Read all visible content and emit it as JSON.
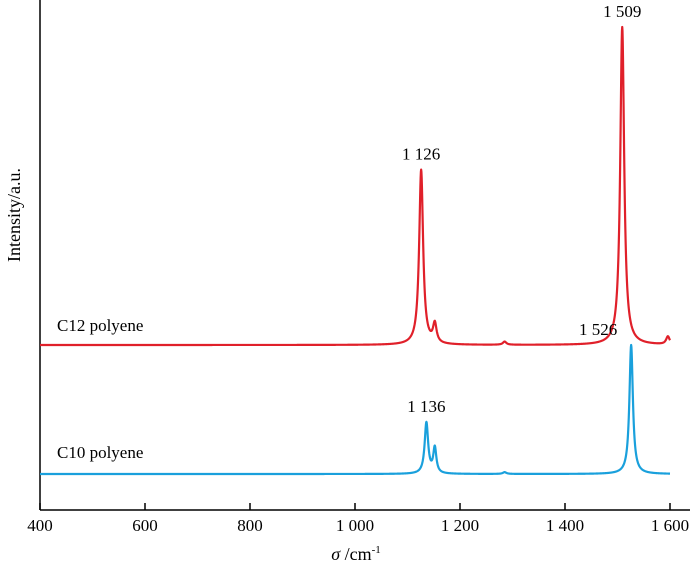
{
  "chart_data": {
    "type": "line",
    "xlabel": "σ /cm",
    "xlabel_symbol": "σ",
    "xlabel_unit": " /cm",
    "xlabel_superscript": "-1",
    "ylabel": "Intensity/a.u.",
    "xlim": [
      400,
      1600
    ],
    "grid": false,
    "x_ticks": [
      {
        "value": 400,
        "label": "400"
      },
      {
        "value": 600,
        "label": "600"
      },
      {
        "value": 800,
        "label": "800"
      },
      {
        "value": 1000,
        "label": "1 000"
      },
      {
        "value": 1200,
        "label": "1 200"
      },
      {
        "value": 1400,
        "label": "1 400"
      },
      {
        "value": 1600,
        "label": "1 600"
      }
    ],
    "series": [
      {
        "name": "C12 polyene",
        "color": "#e0202a",
        "baseline": 0.0,
        "peaks": [
          {
            "x": 1126,
            "height": 0.55,
            "width": 4.5
          },
          {
            "x": 1152,
            "height": 0.06,
            "width": 4
          },
          {
            "x": 1285,
            "height": 0.01,
            "width": 4
          },
          {
            "x": 1509,
            "height": 1.0,
            "width": 4.5
          },
          {
            "x": 1596,
            "height": 0.025,
            "width": 4
          }
        ],
        "labels": [
          {
            "x": 1126,
            "text": "1 126"
          },
          {
            "x": 1509,
            "text": "1 509"
          }
        ]
      },
      {
        "name": "C10 polyene",
        "color": "#1aa0dc",
        "baseline": 0.0,
        "peaks": [
          {
            "x": 1136,
            "height": 0.17,
            "width": 4
          },
          {
            "x": 1152,
            "height": 0.085,
            "width": 3.5
          },
          {
            "x": 1285,
            "height": 0.006,
            "width": 4
          },
          {
            "x": 1526,
            "height": 0.43,
            "width": 4
          }
        ],
        "labels": [
          {
            "x": 1136,
            "text": "1 136"
          },
          {
            "x": 1526,
            "text": "1 526"
          }
        ]
      }
    ]
  }
}
